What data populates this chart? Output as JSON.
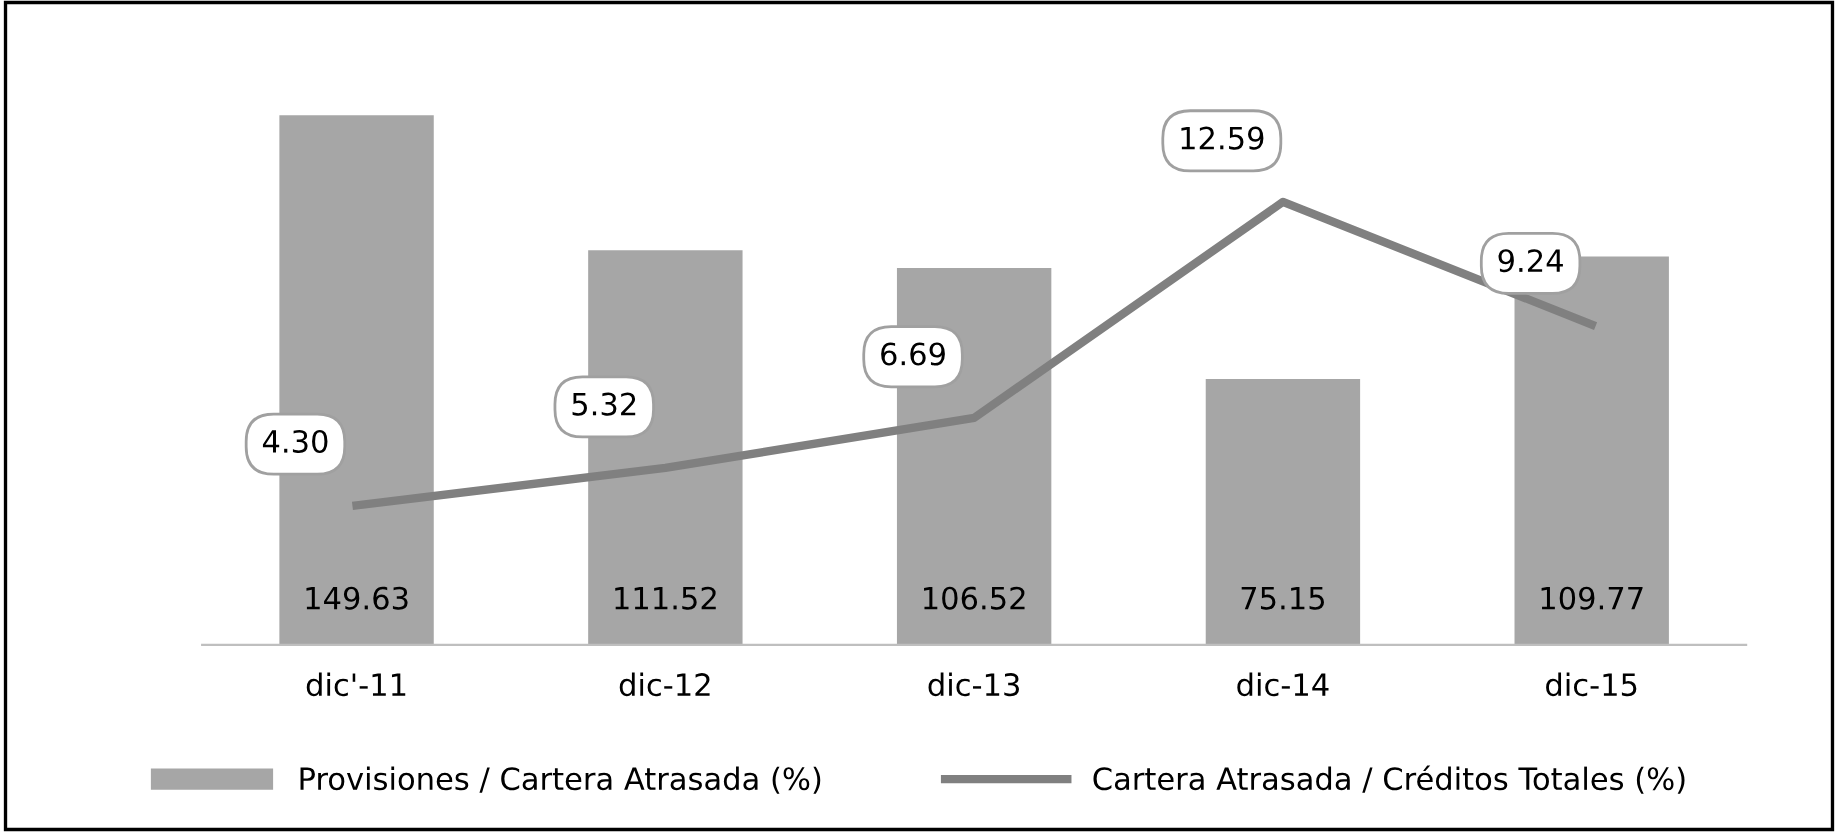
{
  "chart_data": {
    "type": "bar",
    "categories": [
      "dic'-11",
      "dic-12",
      "dic-13",
      "dic-14",
      "dic-15"
    ],
    "series": [
      {
        "name": "Provisiones / Cartera Atrasada (%)",
        "color": "#a6a6a6",
        "values": [
          149.63,
          111.52,
          106.52,
          75.15,
          109.77
        ]
      },
      {
        "name": "Cartera Atrasada / Créditos Totales (%)",
        "type": "line",
        "axis": "y2",
        "color": "#808080",
        "values": [
          4.3,
          5.32,
          6.69,
          12.59,
          9.24
        ],
        "value_labels": [
          "4.30",
          "5.32",
          "6.69",
          "12.59",
          "9.24"
        ]
      }
    ],
    "tick_labels": "x",
    "data_labels": true,
    "legend": "bottom",
    "grid": false,
    "marker": "none",
    "line_style": "solid"
  }
}
